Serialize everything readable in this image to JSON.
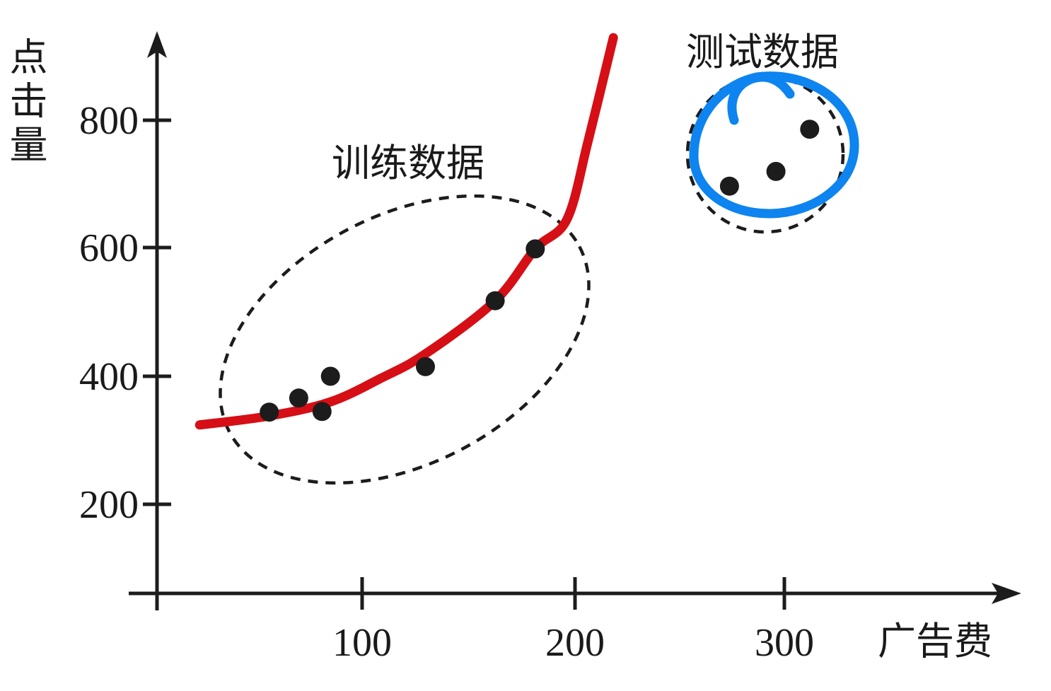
{
  "colors": {
    "ink": "#1c1c1c",
    "curve": "#d50f15",
    "highlight": "#0d84ef"
  },
  "chart_data": {
    "type": "scatter",
    "title": "",
    "xlabel": "广告费",
    "ylabel": "点击量",
    "x_tick_labels": [
      "100",
      "200",
      "300"
    ],
    "y_tick_labels": [
      "800",
      "600",
      "400",
      "200"
    ],
    "x_tick_values": [
      100,
      200,
      300
    ],
    "y_tick_values": [
      800,
      600,
      400,
      200
    ],
    "xlim": [
      -10,
      412
    ],
    "ylim": [
      34,
      939
    ],
    "grid": false,
    "legend": "none",
    "series": [
      {
        "name": "训练数据",
        "role": "training",
        "points": [
          [
            56,
            344
          ],
          [
            70,
            366
          ],
          [
            81,
            345
          ],
          [
            85,
            400
          ],
          [
            130,
            415
          ],
          [
            163,
            518
          ],
          [
            182,
            599
          ]
        ]
      },
      {
        "name": "测试数据",
        "role": "test",
        "points": [
          [
            274,
            697
          ],
          [
            296,
            720
          ],
          [
            312,
            786
          ]
        ]
      }
    ],
    "fitted_curve": {
      "points": [
        [
          23,
          324
        ],
        [
          56,
          338
        ],
        [
          85,
          360
        ],
        [
          109,
          397
        ],
        [
          130,
          435
        ],
        [
          163,
          518
        ],
        [
          182,
          599
        ],
        [
          197,
          645
        ],
        [
          207,
          767
        ],
        [
          219,
          929
        ]
      ]
    },
    "annotations": [
      {
        "label": "训练数据",
        "shape": "dashed-ellipse"
      },
      {
        "label": "测试数据",
        "shape": "dashed-circle-with-blue-hand-loop"
      }
    ]
  }
}
